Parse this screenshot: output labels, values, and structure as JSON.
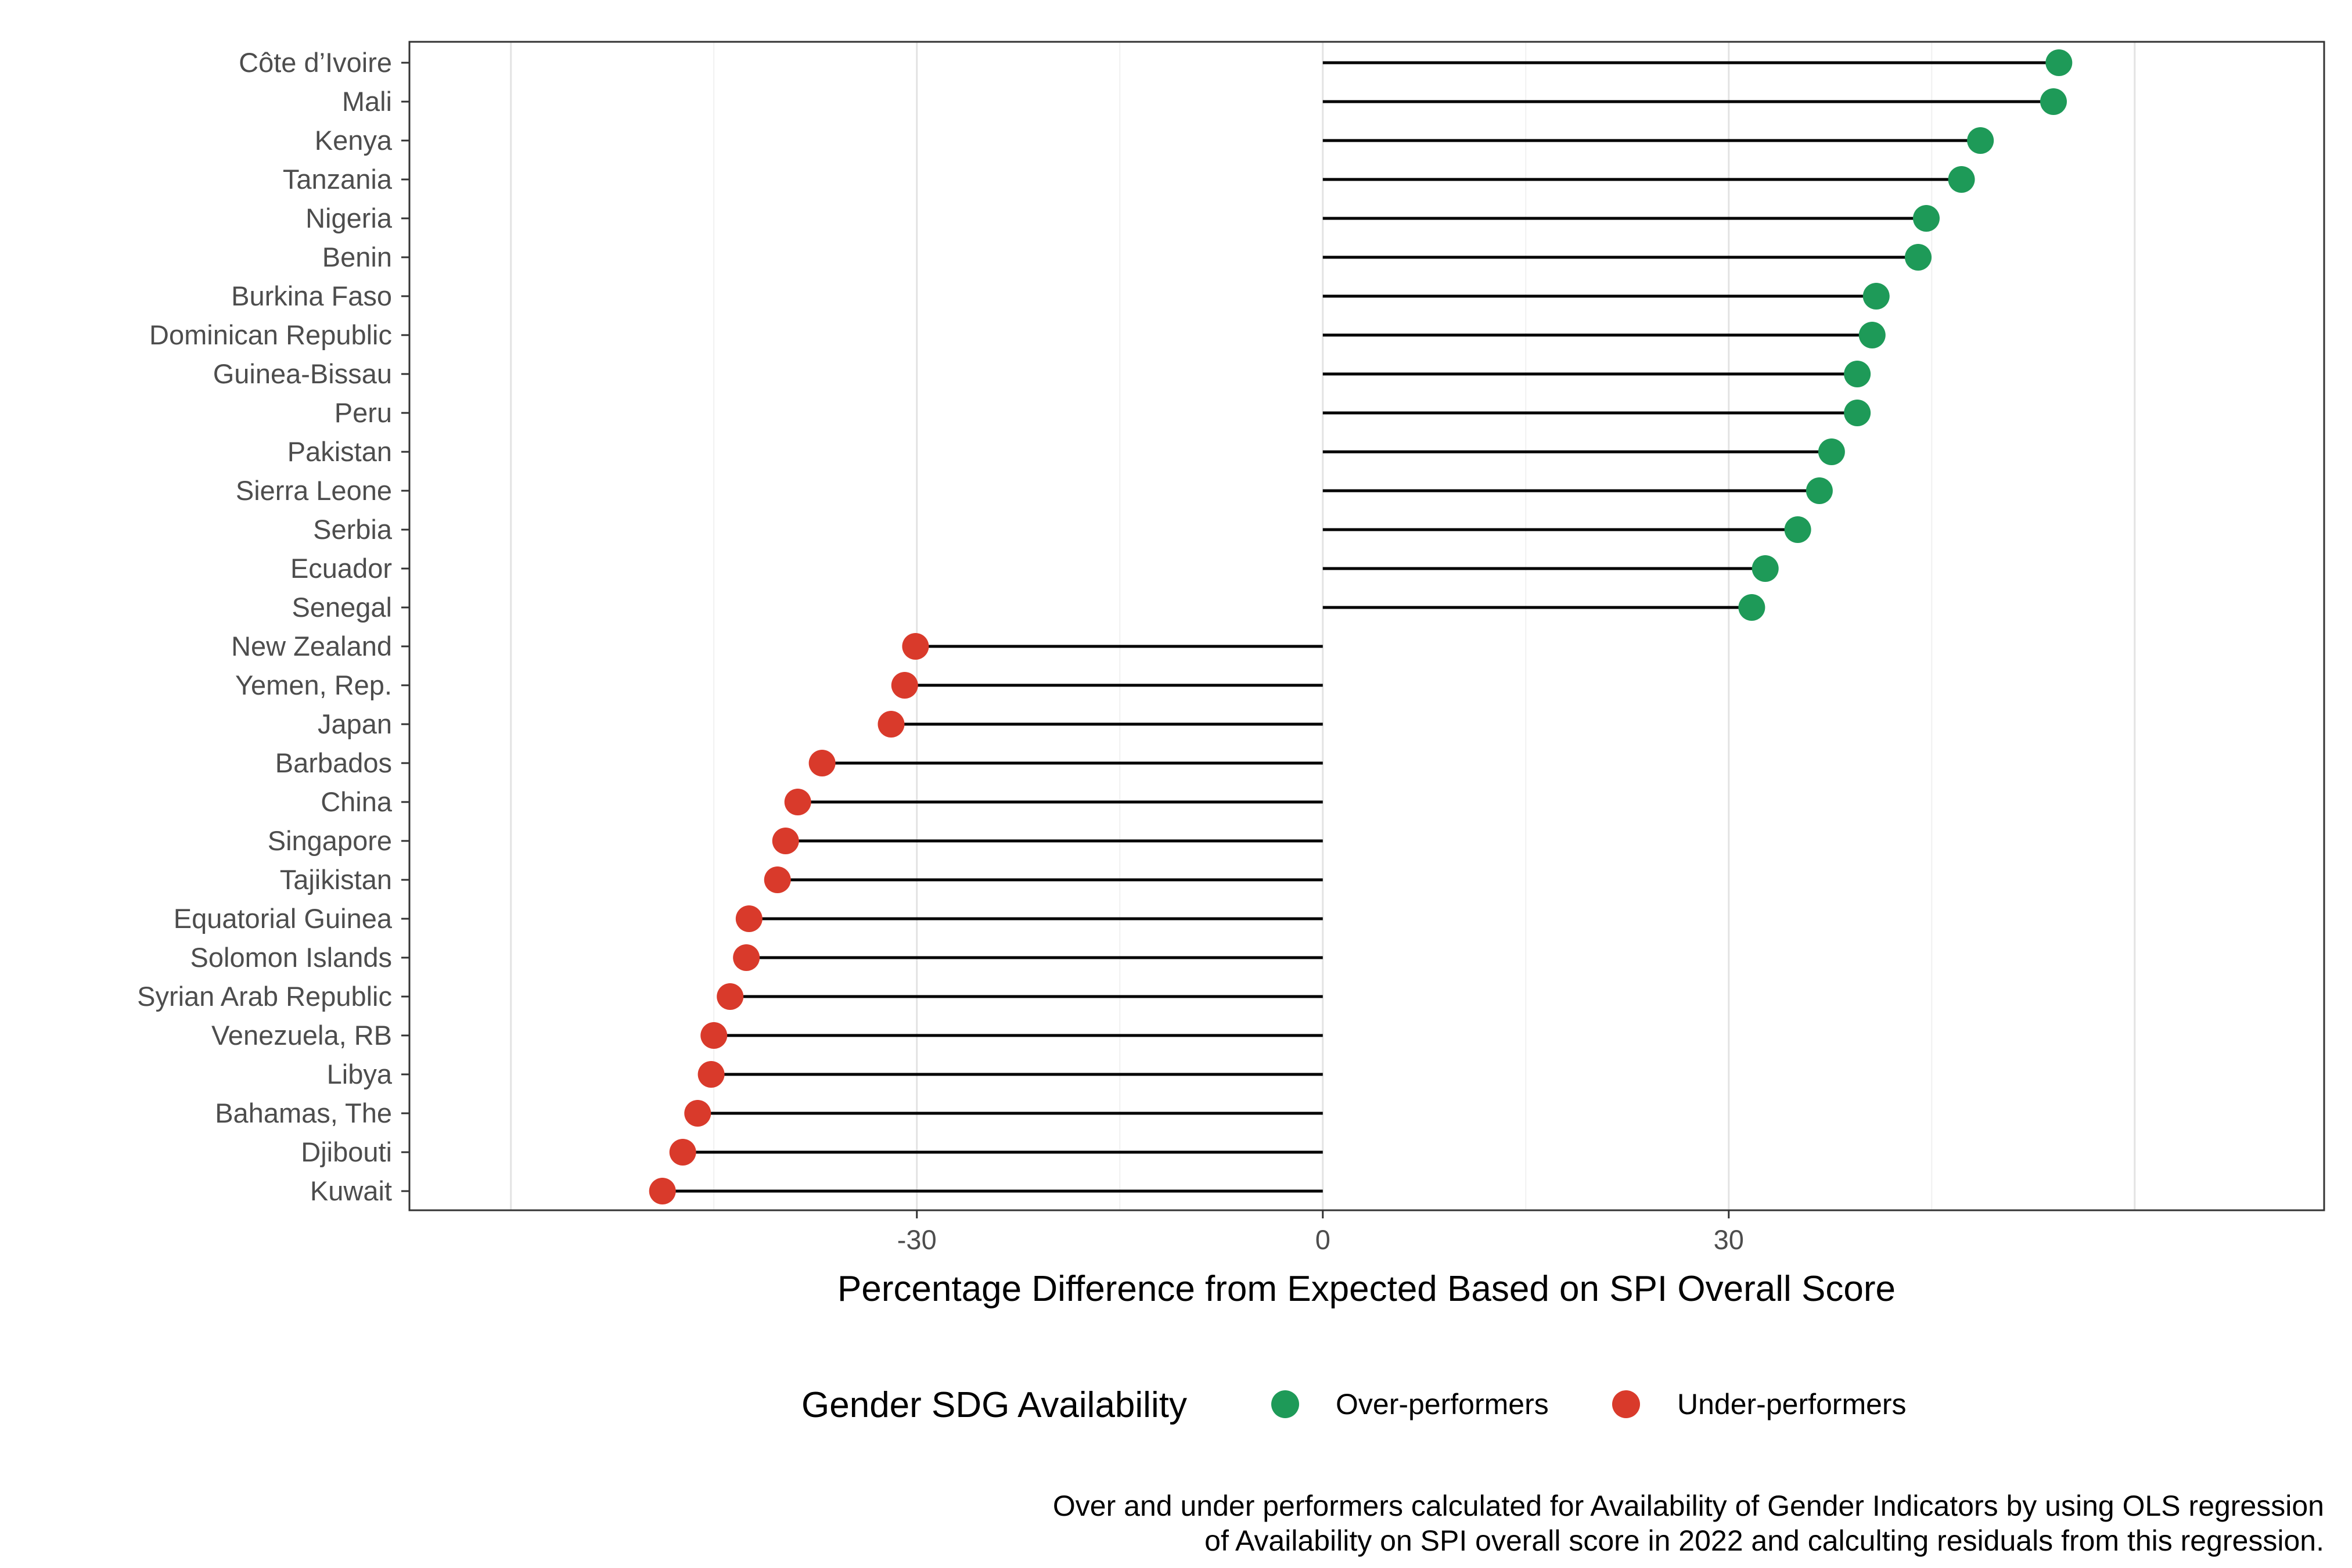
{
  "chart_data": {
    "type": "lollipop",
    "xlabel": "Percentage Difference from Expected Based on SPI Overall Score",
    "xlim": [
      -67.5,
      74
    ],
    "x_ticks": [
      -30,
      0,
      30
    ],
    "x_tick_labels": [
      "-30",
      "0",
      "30"
    ],
    "grid": true,
    "legend": {
      "title": "Gender SDG Availability",
      "position": "bottom",
      "entries": [
        {
          "label": "Over-performers",
          "color": "#1e9a58"
        },
        {
          "label": "Under-performers",
          "color": "#d93a2b"
        }
      ]
    },
    "caption_lines": [
      "Over and under performers calculated for Availability of Gender Indicators by using OLS regression",
      "of Availability on SPI overall score in 2022 and calculting residuals from this regression."
    ],
    "categories": [
      "Côte d’Ivoire",
      "Mali",
      "Kenya",
      "Tanzania",
      "Nigeria",
      "Benin",
      "Burkina Faso",
      "Dominican Republic",
      "Guinea-Bissau",
      "Peru",
      "Pakistan",
      "Sierra Leone",
      "Serbia",
      "Ecuador",
      "Senegal",
      "New Zealand",
      "Yemen, Rep.",
      "Japan",
      "Barbados",
      "China",
      "Singapore",
      "Tajikistan",
      "Equatorial Guinea",
      "Solomon Islands",
      "Syrian Arab Republic",
      "Venezuela, RB",
      "Libya",
      "Bahamas, The",
      "Djibouti",
      "Kuwait"
    ],
    "values": [
      54.4,
      54.0,
      48.6,
      47.2,
      44.6,
      44.0,
      40.9,
      40.6,
      39.5,
      39.5,
      37.6,
      36.7,
      35.1,
      32.7,
      31.7,
      -30.1,
      -30.9,
      -31.9,
      -37.0,
      -38.8,
      -39.7,
      -40.3,
      -42.4,
      -42.6,
      -43.8,
      -45.0,
      -45.2,
      -46.2,
      -47.3,
      -48.8
    ],
    "groups": [
      "Over-performers",
      "Over-performers",
      "Over-performers",
      "Over-performers",
      "Over-performers",
      "Over-performers",
      "Over-performers",
      "Over-performers",
      "Over-performers",
      "Over-performers",
      "Over-performers",
      "Over-performers",
      "Over-performers",
      "Over-performers",
      "Over-performers",
      "Under-performers",
      "Under-performers",
      "Under-performers",
      "Under-performers",
      "Under-performers",
      "Under-performers",
      "Under-performers",
      "Under-performers",
      "Under-performers",
      "Under-performers",
      "Under-performers",
      "Under-performers",
      "Under-performers",
      "Under-performers",
      "Under-performers"
    ]
  }
}
